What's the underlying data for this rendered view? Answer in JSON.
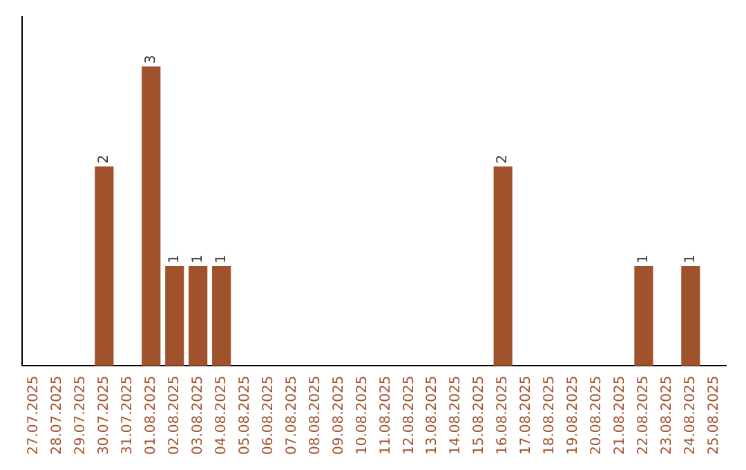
{
  "chart_data": {
    "type": "bar",
    "categories": [
      "27.07.2025",
      "28.07.2025",
      "29.07.2025",
      "30.07.2025",
      "31.07.2025",
      "01.08.2025",
      "02.08.2025",
      "03.08.2025",
      "04.08.2025",
      "05.08.2025",
      "06.08.2025",
      "07.08.2025",
      "08.08.2025",
      "09.08.2025",
      "10.08.2025",
      "11.08.2025",
      "12.08.2025",
      "13.08.2025",
      "14.08.2025",
      "15.08.2025",
      "16.08.2025",
      "17.08.2025",
      "18.08.2025",
      "19.08.2025",
      "20.08.2025",
      "21.08.2025",
      "22.08.2025",
      "23.08.2025",
      "24.08.2025",
      "25.08.2025"
    ],
    "values": [
      0,
      0,
      0,
      2,
      0,
      3,
      1,
      1,
      1,
      0,
      0,
      0,
      0,
      0,
      0,
      0,
      0,
      0,
      0,
      0,
      2,
      0,
      0,
      0,
      0,
      0,
      1,
      0,
      1,
      0
    ],
    "value_labels": [
      null,
      null,
      null,
      "2",
      null,
      "3",
      "1",
      "1",
      "1",
      null,
      null,
      null,
      null,
      null,
      null,
      null,
      null,
      null,
      null,
      null,
      "2",
      null,
      null,
      null,
      null,
      null,
      "1",
      null,
      "1",
      null
    ],
    "color": "#a0522d",
    "grid": false,
    "legend": false,
    "tick_labels": "x"
  }
}
